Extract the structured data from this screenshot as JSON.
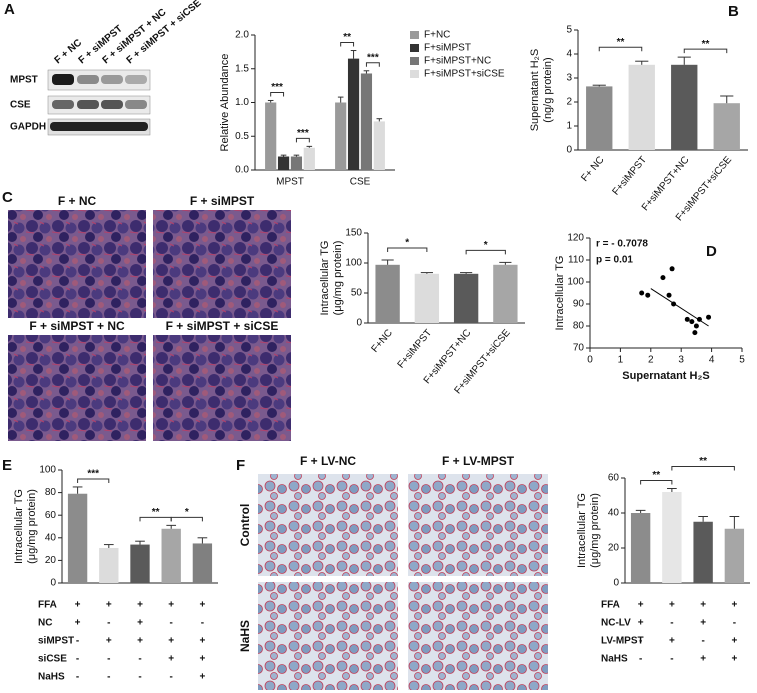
{
  "panel_letters": [
    "A",
    "B",
    "C",
    "D",
    "E",
    "F"
  ],
  "blot": {
    "lanes": [
      "F + NC",
      "F + siMPST",
      "F + siMPST + NC",
      "F + siMPST + siCSE"
    ],
    "rows": [
      "MPST",
      "CSE",
      "GAPDH"
    ]
  },
  "micrographs_c": [
    "F + NC",
    "F + siMPST",
    "F + siMPST + NC",
    "F + siMPST + siCSE"
  ],
  "micrographs_f": {
    "columns": [
      "F + LV-NC",
      "F + LV-MPST"
    ],
    "rows": [
      "Control",
      "NaHS"
    ]
  },
  "chart_data": [
    {
      "type": "bar",
      "ylabel": [
        "Relative Abundance"
      ],
      "categories": [
        "MPST",
        "CSE"
      ],
      "series": [
        {
          "name": "F+NC",
          "color": "#9a9a9a",
          "values": [
            1.0,
            1.0
          ],
          "errors": [
            0.03,
            0.08
          ]
        },
        {
          "name": "F+siMPST",
          "color": "#333333",
          "values": [
            0.2,
            1.65
          ],
          "errors": [
            0.02,
            0.12
          ]
        },
        {
          "name": "F+siMPST+NC",
          "color": "#777777",
          "values": [
            0.2,
            1.43
          ],
          "errors": [
            0.02,
            0.04
          ]
        },
        {
          "name": "F+siMPST+siCSE",
          "color": "#dcdcdc",
          "values": [
            0.33,
            0.72
          ],
          "errors": [
            0.02,
            0.04
          ]
        }
      ],
      "ylim": [
        0,
        2
      ],
      "yticks": [
        {
          "value": 0,
          "label": "0.0"
        },
        {
          "value": 0.5,
          "label": "0.5"
        },
        {
          "value": 1,
          "label": "1.0"
        },
        {
          "value": 1.5,
          "label": "1.5"
        },
        {
          "value": 2,
          "label": "2.0"
        }
      ],
      "annotations": [
        "***",
        "***",
        "**",
        "***"
      ]
    },
    {
      "type": "bar",
      "ylabel": [
        "Supernatant H₂S",
        "(ng/g protein)"
      ],
      "categories": [
        "F+ NC",
        "F+siMPST",
        "F+siMPST+NC",
        "F+siMPST+siCSE"
      ],
      "values": [
        2.65,
        3.55,
        3.55,
        1.95
      ],
      "errors": [
        0.05,
        0.15,
        0.32,
        0.3
      ],
      "colors": [
        "#8c8c8c",
        "#dcdcdc",
        "#5a5a5a",
        "#a6a6a6"
      ],
      "ylim": [
        0,
        5
      ],
      "yticks": [
        0,
        1,
        2,
        3,
        4,
        5
      ],
      "annotations": [
        "**",
        "**"
      ]
    },
    {
      "type": "bar",
      "ylabel": [
        "Intracellular TG",
        "(μg/mg protein)"
      ],
      "categories": [
        "F+NC",
        "F+siMPST",
        "F+siMPST+NC",
        "F+siMPST+siCSE"
      ],
      "values": [
        97,
        82,
        82,
        97
      ],
      "errors": [
        8,
        2,
        2,
        4
      ],
      "colors": [
        "#8c8c8c",
        "#dcdcdc",
        "#5a5a5a",
        "#a6a6a6"
      ],
      "ylim": [
        0,
        150
      ],
      "yticks": [
        0,
        50,
        100,
        150
      ],
      "annotations": [
        "*",
        "*"
      ]
    },
    {
      "type": "scatter",
      "xlabel": "Supernatant H₂S",
      "ylabel": [
        "Intracellular TG"
      ],
      "x": [
        1.7,
        1.9,
        2.4,
        2.6,
        2.7,
        2.75,
        3.2,
        3.35,
        3.45,
        3.5,
        3.6,
        3.9
      ],
      "y": [
        95,
        94,
        102,
        94,
        106,
        90,
        83,
        82,
        77,
        80,
        83,
        84
      ],
      "trend_x": [
        2,
        3.9
      ],
      "trend_y": [
        97,
        80
      ],
      "xlim": [
        0,
        5
      ],
      "xticks": [
        0,
        1,
        2,
        3,
        4,
        5
      ],
      "ylim": [
        70,
        120
      ],
      "yticks": [
        70,
        80,
        90,
        100,
        110,
        120
      ],
      "annotations": [
        "r = - 0.7078",
        "p = 0.01"
      ]
    },
    {
      "type": "bar",
      "ylabel": [
        "Intracellular TG",
        "(μg/mg protein)"
      ],
      "values": [
        79,
        31,
        34,
        48,
        35
      ],
      "errors": [
        6,
        3,
        3,
        3,
        5
      ],
      "colors": [
        "#8c8c8c",
        "#dcdcdc",
        "#5a5a5a",
        "#a6a6a6",
        "#808080"
      ],
      "ylim": [
        0,
        100
      ],
      "yticks": [
        0,
        20,
        40,
        60,
        80,
        100
      ],
      "annotations": [
        "***",
        "**",
        "*"
      ],
      "table": {
        "rows": [
          {
            "label": "FFA",
            "cells": [
              "+",
              "+",
              "+",
              "+",
              "+"
            ]
          },
          {
            "label": "NC",
            "cells": [
              "+",
              "-",
              "+",
              "-",
              "-"
            ]
          },
          {
            "label": "siMPST",
            "cells": [
              "-",
              "+",
              "+",
              "+",
              "+"
            ]
          },
          {
            "label": "siCSE",
            "cells": [
              "-",
              "-",
              "-",
              "+",
              "+"
            ]
          },
          {
            "label": "NaHS",
            "cells": [
              "-",
              "-",
              "-",
              "-",
              "+"
            ]
          }
        ]
      }
    },
    {
      "type": "bar",
      "ylabel": [
        "Intracellular TG",
        "(μg/mg protein)"
      ],
      "values": [
        40,
        52,
        35,
        31
      ],
      "errors": [
        1.5,
        2,
        3,
        7
      ],
      "colors": [
        "#8c8c8c",
        "#e6e6e6",
        "#5a5a5a",
        "#a6a6a6"
      ],
      "ylim": [
        0,
        60
      ],
      "yticks": [
        0,
        20,
        40,
        60
      ],
      "annotations": [
        "**",
        "**"
      ],
      "table": {
        "rows": [
          {
            "label": "FFA",
            "cells": [
              "+",
              "+",
              "+",
              "+"
            ]
          },
          {
            "label": "NC-LV",
            "cells": [
              "+",
              "-",
              "+",
              "-"
            ]
          },
          {
            "label": "LV-MPST",
            "cells": [
              "-",
              "+",
              "-",
              "+"
            ]
          },
          {
            "label": "NaHS",
            "cells": [
              "-",
              "-",
              "+",
              "+"
            ]
          }
        ]
      }
    }
  ]
}
